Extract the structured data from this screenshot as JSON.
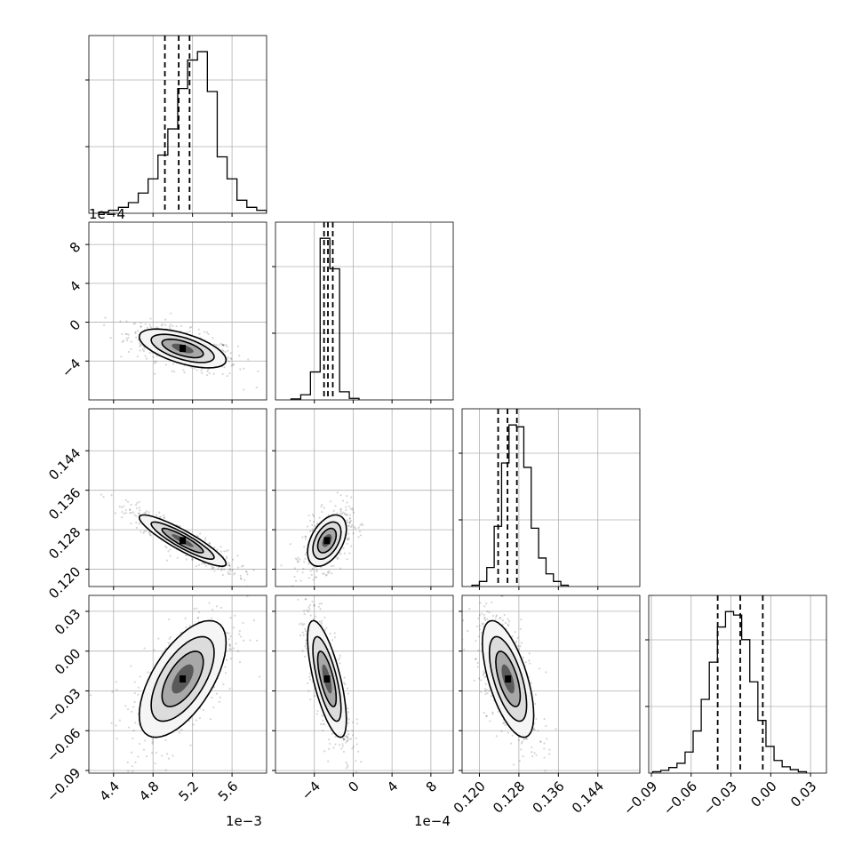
{
  "chart_data": {
    "type": "corner",
    "grid": true,
    "n_parameters": 4,
    "parameters": [
      {
        "xlim": [
          4.15,
          5.95
        ],
        "ticks": [
          4.4,
          4.8,
          5.2,
          5.6
        ],
        "tick_labels": [
          "4.4",
          "4.8",
          "5.2",
          "5.6"
        ],
        "offset_label": "1e−3"
      },
      {
        "xlim": [
          -8.0,
          10.3
        ],
        "ticks": [
          -4,
          0,
          4,
          8
        ],
        "tick_labels": [
          "−4",
          "0",
          "4",
          "8"
        ],
        "offset_label": "1e−4"
      },
      {
        "xlim": [
          0.1165,
          0.1525
        ],
        "ticks": [
          0.12,
          0.128,
          0.136,
          0.144
        ],
        "tick_labels": [
          "0.120",
          "0.128",
          "0.136",
          "0.144"
        ],
        "offset_label": ""
      },
      {
        "xlim": [
          -0.092,
          0.042
        ],
        "ticks": [
          -0.09,
          -0.06,
          -0.03,
          0.0,
          0.03
        ],
        "tick_labels": [
          "−0.09",
          "−0.06",
          "−0.03",
          "0.00",
          "0.03"
        ],
        "offset_label": ""
      }
    ],
    "histograms": [
      {
        "edges_start": 4.25,
        "bin_width": 0.1,
        "counts": [
          2,
          5,
          10,
          18,
          34,
          58,
          98,
          142,
          210,
          258,
          272,
          205,
          95,
          58,
          22,
          10,
          5,
          2
        ],
        "ymax": 272,
        "quantiles": [
          4.92,
          5.06,
          5.17
        ]
      },
      {
        "edges_start": -6.4,
        "bin_width": 1.0,
        "counts": [
          2,
          10,
          55,
          318,
          258,
          16,
          3
        ],
        "ymax": 318,
        "quantiles": [
          -3.0,
          -2.6,
          -2.1
        ]
      },
      {
        "edges_start": 0.1185,
        "bin_width": 0.0015,
        "counts": [
          2,
          8,
          30,
          95,
          195,
          255,
          252,
          188,
          92,
          45,
          20,
          8,
          2
        ],
        "ymax": 255,
        "quantiles": [
          0.1238,
          0.1257,
          0.1276
        ]
      },
      {
        "edges_start": -0.089,
        "bin_width": 0.0061,
        "counts": [
          2,
          4,
          8,
          14,
          30,
          60,
          105,
          158,
          208,
          230,
          225,
          190,
          130,
          75,
          38,
          18,
          9,
          5,
          2
        ],
        "ymax": 230,
        "quantiles": [
          -0.04,
          -0.023,
          -0.006
        ]
      }
    ],
    "scatter_pairs": [
      {
        "row": 1,
        "col": 0,
        "mean": [
          5.1,
          -2.7
        ],
        "sd": [
          0.22,
          1.0
        ],
        "corr": -0.6
      },
      {
        "row": 2,
        "col": 0,
        "mean": [
          5.1,
          0.1258
        ],
        "sd": [
          0.22,
          0.0026
        ],
        "corr": -0.9
      },
      {
        "row": 2,
        "col": 1,
        "mean": [
          -2.7,
          0.1258
        ],
        "sd": [
          1.0,
          0.0026
        ],
        "corr": 0.45
      },
      {
        "row": 3,
        "col": 0,
        "mean": [
          5.1,
          -0.021
        ],
        "sd": [
          0.22,
          0.022
        ],
        "corr": 0.62
      },
      {
        "row": 3,
        "col": 1,
        "mean": [
          -2.7,
          -0.021
        ],
        "sd": [
          1.0,
          0.022
        ],
        "corr": -0.7
      },
      {
        "row": 3,
        "col": 2,
        "mean": [
          0.1258,
          -0.021
        ],
        "sd": [
          0.0026,
          0.022
        ],
        "corr": -0.62
      }
    ]
  }
}
